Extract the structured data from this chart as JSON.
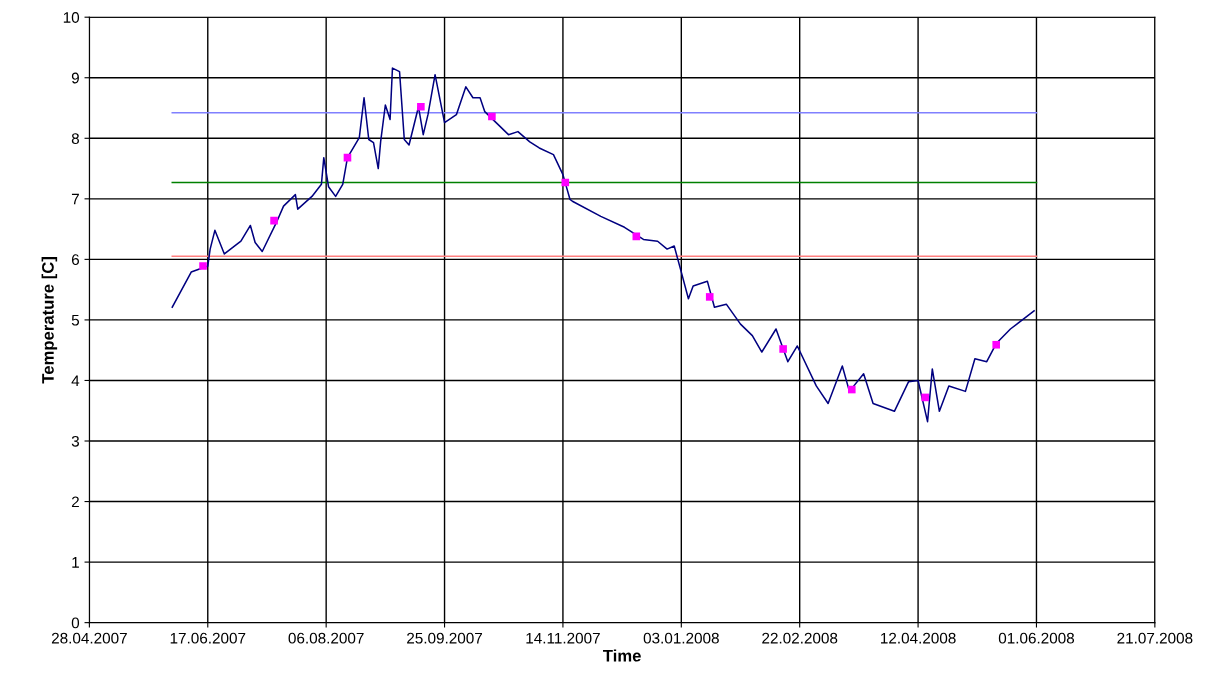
{
  "chart_data": {
    "type": "line",
    "xlabel": "Time",
    "ylabel": "Temperature [C]",
    "xlim": [
      "2007-04-28",
      "2008-07-21"
    ],
    "xticks": [
      {
        "value": "2007-04-28",
        "label": "28.04.2007"
      },
      {
        "value": "2007-06-17",
        "label": "17.06.2007"
      },
      {
        "value": "2007-08-06",
        "label": "06.08.2007"
      },
      {
        "value": "2007-09-25",
        "label": "25.09.2007"
      },
      {
        "value": "2007-11-14",
        "label": "14.11.2007"
      },
      {
        "value": "2008-01-03",
        "label": "03.01.2008"
      },
      {
        "value": "2008-02-22",
        "label": "22.02.2008"
      },
      {
        "value": "2008-04-12",
        "label": "12.04.2008"
      },
      {
        "value": "2008-06-01",
        "label": "01.06.2008"
      },
      {
        "value": "2008-07-21",
        "label": "21.07.2008"
      }
    ],
    "ylim": [
      0,
      10
    ],
    "yticks": [
      0,
      1,
      2,
      3,
      4,
      5,
      6,
      7,
      8,
      9,
      10
    ],
    "grid": true,
    "series": [
      {
        "color": "#8080ff",
        "marker": "none",
        "x": [
          "2007-06-02",
          "2008-06-01"
        ],
        "values": [
          8.42,
          8.42
        ]
      },
      {
        "color": "#008000",
        "marker": "none",
        "x": [
          "2007-06-02",
          "2008-06-01"
        ],
        "values": [
          7.27,
          7.27
        ]
      },
      {
        "color": "#ff8080",
        "marker": "none",
        "x": [
          "2007-06-02",
          "2008-06-01"
        ],
        "values": [
          6.05,
          6.05
        ]
      },
      {
        "color": "#000080",
        "marker": "none",
        "x": [
          "2007-06-02",
          "2007-06-10",
          "2007-06-17",
          "2007-06-18",
          "2007-06-20",
          "2007-06-24",
          "2007-07-01",
          "2007-07-05",
          "2007-07-07",
          "2007-07-10",
          "2007-07-16",
          "2007-07-19",
          "2007-07-24",
          "2007-07-25",
          "2007-07-31",
          "2007-08-04",
          "2007-08-05",
          "2007-08-07",
          "2007-08-10",
          "2007-08-13",
          "2007-08-15",
          "2007-08-20",
          "2007-08-22",
          "2007-08-24",
          "2007-08-26",
          "2007-08-28",
          "2007-08-29",
          "2007-08-31",
          "2007-09-02",
          "2007-09-03",
          "2007-09-06",
          "2007-09-08",
          "2007-09-10",
          "2007-09-14",
          "2007-09-16",
          "2007-09-18",
          "2007-09-21",
          "2007-09-25",
          "2007-09-30",
          "2007-10-04",
          "2007-10-07",
          "2007-10-10",
          "2007-10-12",
          "2007-10-22",
          "2007-10-26",
          "2007-10-31",
          "2007-11-04",
          "2007-11-10",
          "2007-11-14",
          "2007-11-17",
          "2007-11-18",
          "2007-11-30",
          "2007-12-10",
          "2007-12-18",
          "2007-12-24",
          "2007-12-28",
          "2007-12-31",
          "2008-01-03",
          "2008-01-06",
          "2008-01-08",
          "2008-01-14",
          "2008-01-17",
          "2008-01-22",
          "2008-01-28",
          "2008-02-02",
          "2008-02-06",
          "2008-02-12",
          "2008-02-17",
          "2008-02-21",
          "2008-02-29",
          "2008-03-05",
          "2008-03-11",
          "2008-03-14",
          "2008-03-20",
          "2008-03-24",
          "2008-04-02",
          "2008-04-08",
          "2008-04-12",
          "2008-04-16",
          "2008-04-18",
          "2008-04-21",
          "2008-04-25",
          "2008-05-02",
          "2008-05-06",
          "2008-05-11",
          "2008-05-15",
          "2008-05-21",
          "2008-05-31"
        ],
        "values": [
          5.21,
          5.79,
          5.89,
          6.17,
          6.48,
          6.09,
          6.3,
          6.56,
          6.28,
          6.13,
          6.61,
          6.88,
          7.07,
          6.83,
          7.04,
          7.24,
          7.68,
          7.2,
          7.04,
          7.24,
          7.68,
          8.01,
          8.67,
          7.98,
          7.93,
          7.5,
          7.94,
          8.55,
          8.31,
          9.16,
          9.1,
          7.98,
          7.89,
          8.52,
          8.06,
          8.39,
          9.05,
          8.26,
          8.39,
          8.85,
          8.67,
          8.67,
          8.44,
          8.06,
          8.11,
          7.94,
          7.84,
          7.73,
          7.4,
          6.99,
          6.96,
          6.71,
          6.53,
          6.33,
          6.3,
          6.17,
          6.22,
          5.79,
          5.35,
          5.56,
          5.64,
          5.21,
          5.26,
          4.93,
          4.74,
          4.47,
          4.85,
          4.31,
          4.57,
          3.91,
          3.62,
          4.24,
          3.82,
          4.11,
          3.62,
          3.49,
          3.98,
          4.0,
          3.32,
          4.19,
          3.49,
          3.91,
          3.82,
          4.36,
          4.31,
          4.61,
          4.85,
          5.15
        ]
      },
      {
        "type": "scatter",
        "color": "#ff00ff",
        "marker": "square",
        "x": [
          "2007-06-15",
          "2007-07-15",
          "2007-08-15",
          "2007-09-15",
          "2007-10-15",
          "2007-11-15",
          "2007-12-15",
          "2008-01-15",
          "2008-02-15",
          "2008-03-15",
          "2008-04-15",
          "2008-05-15"
        ],
        "values": [
          5.89,
          6.64,
          7.68,
          8.52,
          8.36,
          7.27,
          6.38,
          5.38,
          4.52,
          3.85,
          3.72,
          4.59
        ]
      }
    ]
  }
}
